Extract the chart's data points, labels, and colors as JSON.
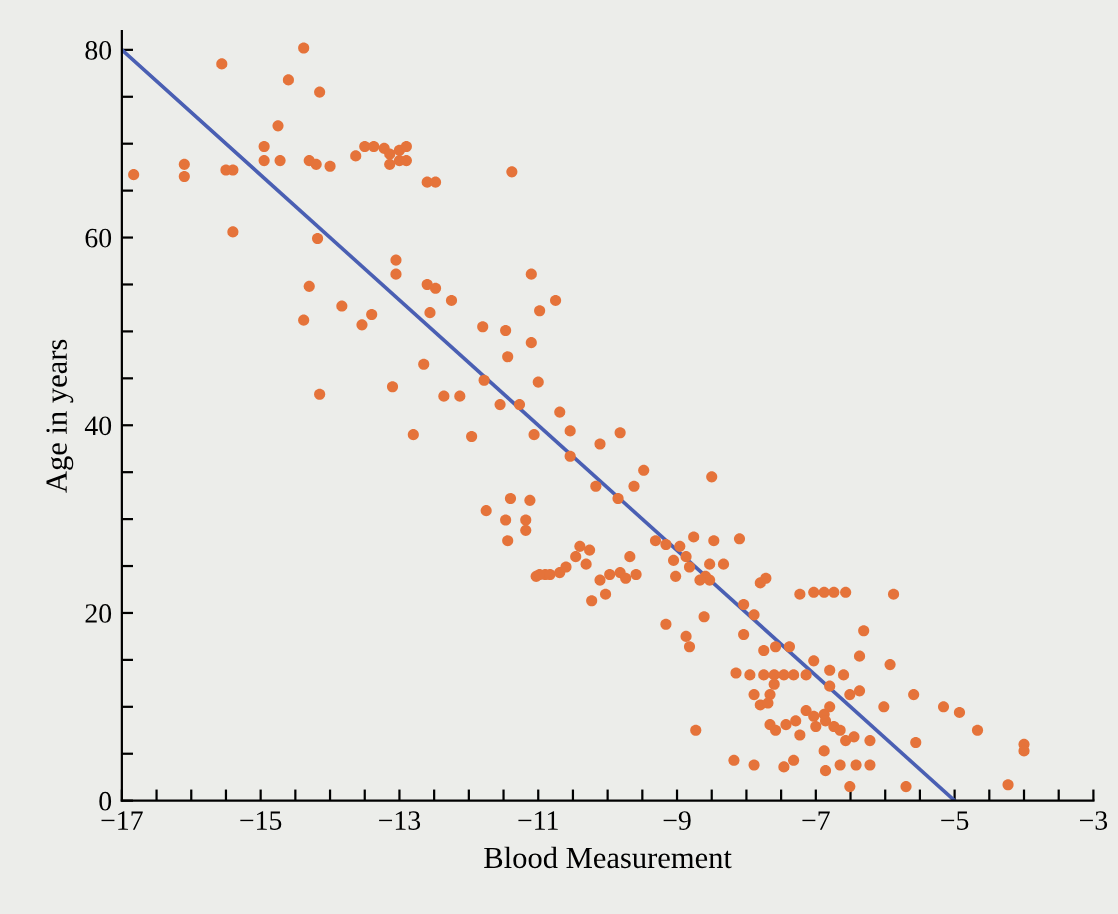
{
  "chart_data": {
    "type": "scatter",
    "xlabel": "Blood Measurement",
    "ylabel": "Age in years",
    "xlim": [
      -17,
      -3
    ],
    "ylim": [
      0,
      82
    ],
    "xticks": [
      -17,
      {
        "value": -16.5,
        "label": null
      },
      {
        "value": -16,
        "label": null
      },
      {
        "value": -15.5,
        "label": null
      },
      -15,
      {
        "value": -14.5,
        "label": null
      },
      {
        "value": -14,
        "label": null
      },
      {
        "value": -13.5,
        "label": null
      },
      -13,
      {
        "value": -12.5,
        "label": null
      },
      {
        "value": -12,
        "label": null
      },
      {
        "value": -11.5,
        "label": null
      },
      -11,
      {
        "value": -10.5,
        "label": null
      },
      {
        "value": -10,
        "label": null
      },
      {
        "value": -9.5,
        "label": null
      },
      -9,
      {
        "value": -8.5,
        "label": null
      },
      {
        "value": -8,
        "label": null
      },
      {
        "value": -7.5,
        "label": null
      },
      -7,
      {
        "value": -6.5,
        "label": null
      },
      {
        "value": -6,
        "label": null
      },
      {
        "value": -5.5,
        "label": null
      },
      -5,
      {
        "value": -4.5,
        "label": null
      },
      {
        "value": -4,
        "label": null
      },
      {
        "value": -3.5,
        "label": null
      },
      -3
    ],
    "yticks": [
      0,
      {
        "value": 5,
        "label": null
      },
      {
        "value": 10,
        "label": null
      },
      {
        "value": 15,
        "label": null
      },
      20,
      {
        "value": 25,
        "label": null
      },
      {
        "value": 30,
        "label": null
      },
      {
        "value": 35,
        "label": null
      },
      40,
      {
        "value": 45,
        "label": null
      },
      {
        "value": 50,
        "label": null
      },
      {
        "value": 55,
        "label": null
      },
      60,
      {
        "value": 65,
        "label": null
      },
      {
        "value": 70,
        "label": null
      },
      {
        "value": 75,
        "label": null
      },
      80
    ],
    "grid": false,
    "legend": false,
    "series": [
      {
        "color": "#e5733a",
        "marker": "circle",
        "x": [
          -16.83,
          -16.1,
          -16.1,
          -15.56,
          -15.5,
          -15.4,
          -15.4,
          -14.95,
          -14.95,
          -14.75,
          -14.72,
          -14.6,
          -14.38,
          -14.3,
          -14.15,
          -14.2,
          -14.0,
          -14.18,
          -14.3,
          -14.38,
          -13.83,
          -13.54,
          -13.4,
          -14.15,
          -13.63,
          -13.5,
          -13.37,
          -13.22,
          -13.14,
          -13.0,
          -12.9,
          -13.0,
          -13.14,
          -12.9,
          -12.6,
          -12.48,
          -13.05,
          -13.05,
          -12.6,
          -12.48,
          -12.25,
          -12.56,
          -12.65,
          -13.1,
          -12.36,
          -12.13,
          -12.8,
          -11.96,
          -11.8,
          -11.47,
          -11.44,
          -11.1,
          -11.1,
          -11.38,
          -10.98,
          -11.0,
          -11.78,
          -11.55,
          -11.27,
          -11.06,
          -10.75,
          -11.75,
          -11.4,
          -11.12,
          -11.47,
          -11.18,
          -11.18,
          -11.44,
          -11.03,
          -10.9,
          -10.69,
          -10.54,
          -10.11,
          -9.82,
          -10.54,
          -9.48,
          -9.62,
          -10.17,
          -9.85,
          -8.5,
          -10.98,
          -10.83,
          -10.69,
          -10.6,
          -10.46,
          -10.31,
          -10.26,
          -10.4,
          -10.11,
          -9.97,
          -9.82,
          -9.74,
          -9.59,
          -9.68,
          -10.03,
          -10.23,
          -9.31,
          -9.16,
          -8.96,
          -9.05,
          -8.87,
          -8.82,
          -9.02,
          -8.76,
          -8.47,
          -8.53,
          -8.53,
          -8.33,
          -8.1,
          -8.59,
          -8.67,
          -9.16,
          -8.87,
          -8.82,
          -8.61,
          -8.73,
          -8.04,
          -7.89,
          -7.8,
          -7.72,
          -8.04,
          -7.75,
          -7.58,
          -7.38,
          -8.15,
          -7.95,
          -7.75,
          -7.6,
          -7.46,
          -7.32,
          -7.14,
          -7.89,
          -7.66,
          -7.6,
          -7.8,
          -7.69,
          -7.66,
          -7.58,
          -7.43,
          -7.29,
          -7.23,
          -8.18,
          -7.89,
          -7.46,
          -7.32,
          -7.23,
          -7.03,
          -6.88,
          -6.74,
          -6.57,
          -5.88,
          -6.31,
          -7.03,
          -6.8,
          -6.6,
          -6.37,
          -5.93,
          -6.8,
          -6.51,
          -6.37,
          -7.14,
          -7.03,
          -6.88,
          -6.8,
          -6.86,
          -6.74,
          -6.65,
          -7.0,
          -6.57,
          -6.45,
          -6.22,
          -6.02,
          -6.88,
          -6.65,
          -6.42,
          -6.22,
          -6.86,
          -6.51,
          -5.59,
          -5.56,
          -5.7,
          -5.16,
          -4.93,
          -4.67,
          -4.0,
          -4.0,
          -4.23
        ],
        "values": [
          66.7,
          67.8,
          66.5,
          78.5,
          67.2,
          67.2,
          60.6,
          69.7,
          68.2,
          71.9,
          68.2,
          76.8,
          80.2,
          68.2,
          75.5,
          67.8,
          67.6,
          59.9,
          54.8,
          51.2,
          52.7,
          50.7,
          51.8,
          43.3,
          68.7,
          69.7,
          69.7,
          69.5,
          68.9,
          69.3,
          69.7,
          68.2,
          67.8,
          68.2,
          65.9,
          65.9,
          57.6,
          56.1,
          55.0,
          54.6,
          53.3,
          52.0,
          46.5,
          44.1,
          43.1,
          43.1,
          39.0,
          38.8,
          50.5,
          50.1,
          47.3,
          48.8,
          56.1,
          67.0,
          52.2,
          44.6,
          44.8,
          42.2,
          42.2,
          39.0,
          53.3,
          30.9,
          32.2,
          32.0,
          29.9,
          29.9,
          28.8,
          27.7,
          23.9,
          24.1,
          41.4,
          39.4,
          38.0,
          39.2,
          36.7,
          35.2,
          33.5,
          33.5,
          32.2,
          34.5,
          24.1,
          24.1,
          24.3,
          24.9,
          26.0,
          25.2,
          26.7,
          27.1,
          23.5,
          24.1,
          24.3,
          23.7,
          24.1,
          26.0,
          22.0,
          21.3,
          27.7,
          27.3,
          27.1,
          25.6,
          26.0,
          24.9,
          23.9,
          28.1,
          27.7,
          25.2,
          23.5,
          25.2,
          27.9,
          23.9,
          23.5,
          18.8,
          17.5,
          16.4,
          19.6,
          7.5,
          20.9,
          19.8,
          23.2,
          23.7,
          17.7,
          16.0,
          16.4,
          16.4,
          13.6,
          13.4,
          13.4,
          13.4,
          13.4,
          13.4,
          13.4,
          11.3,
          11.3,
          12.4,
          10.2,
          10.4,
          8.1,
          7.5,
          8.1,
          8.5,
          7.0,
          4.3,
          3.8,
          3.6,
          4.3,
          22.0,
          22.2,
          22.2,
          22.2,
          22.2,
          22.0,
          18.1,
          14.9,
          13.9,
          13.4,
          15.4,
          14.5,
          12.2,
          11.3,
          11.7,
          9.6,
          9.0,
          9.2,
          10.0,
          8.5,
          7.9,
          7.5,
          7.9,
          6.4,
          6.8,
          6.4,
          10.0,
          5.3,
          3.8,
          3.8,
          3.8,
          3.2,
          1.5,
          11.3,
          6.2,
          1.5,
          10.0,
          9.4,
          7.5,
          6.0,
          5.3,
          1.7
        ]
      },
      {
        "type": "line",
        "color": "#4a5fb3",
        "line_style": "solid",
        "marker": "none",
        "x": [
          -17,
          -5
        ],
        "values": [
          80,
          0
        ]
      }
    ]
  }
}
